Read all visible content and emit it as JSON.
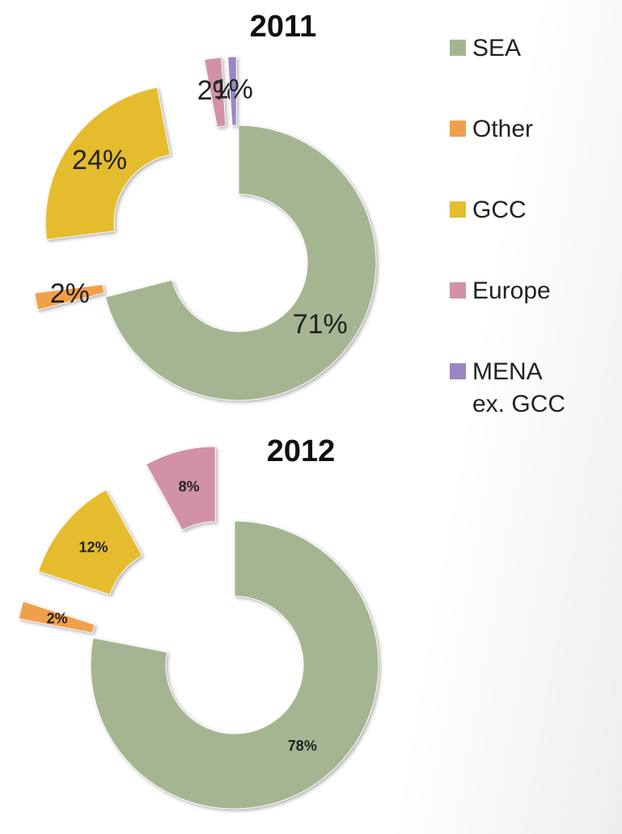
{
  "chart_data": [
    {
      "type": "donut",
      "title": "2011",
      "categories": [
        "SEA",
        "Other",
        "GCC",
        "Europe",
        "MENA ex. GCC"
      ],
      "values": [
        71,
        2,
        24,
        2,
        1
      ],
      "value_labels": [
        "71%",
        "2%",
        "24%",
        "2%",
        "1%"
      ],
      "colors": [
        "#a5b592",
        "#f0a04b",
        "#e6bc2f",
        "#d291a4",
        "#9b86c4"
      ]
    },
    {
      "type": "donut",
      "title": "2012",
      "categories": [
        "SEA",
        "Other",
        "GCC",
        "Europe"
      ],
      "values": [
        78,
        2,
        12,
        8
      ],
      "value_labels": [
        "78%",
        "2%",
        "12%",
        "8%"
      ],
      "colors": [
        "#a5b592",
        "#f0a04b",
        "#e6bc2f",
        "#d291a4"
      ]
    }
  ],
  "legend": {
    "labels": [
      "SEA",
      "Other",
      "GCC",
      "Europe",
      "MENA ex. GCC"
    ],
    "colors": [
      "#a5b592",
      "#f0a04b",
      "#e6bc2f",
      "#d291a4",
      "#9b86c4"
    ]
  }
}
